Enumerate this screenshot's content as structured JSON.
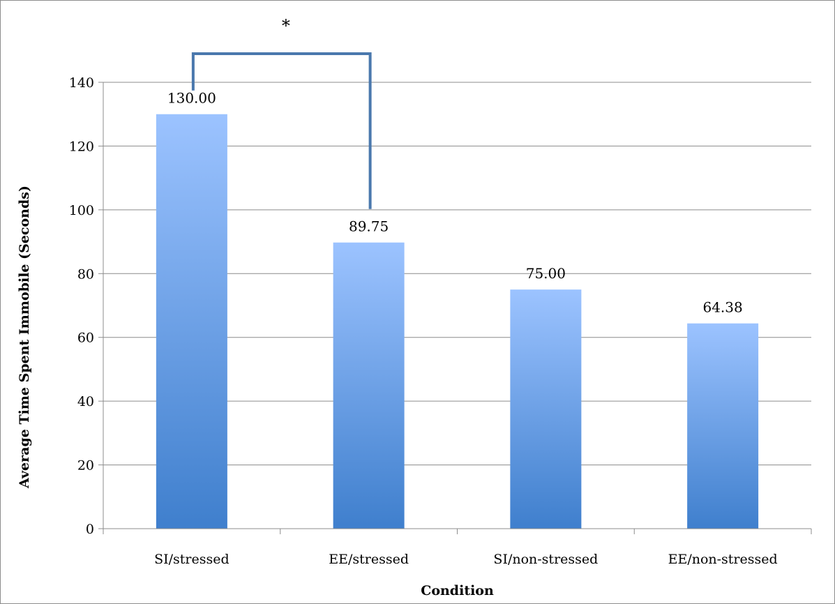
{
  "chart_data": {
    "type": "bar",
    "categories": [
      "SI/stressed",
      "EE/stressed",
      "SI/non-stressed",
      "EE/non-stressed"
    ],
    "values": [
      130.0,
      89.75,
      75.0,
      64.38
    ],
    "value_labels": [
      "130.00",
      "89.75",
      "75.00",
      "64.38"
    ],
    "title": "",
    "xlabel": "Condition",
    "ylabel": "Average Time Spent Immobile (Seconds)",
    "ylim": [
      0,
      140
    ],
    "yticks": [
      0,
      20,
      40,
      60,
      80,
      100,
      120,
      140
    ],
    "grid": "horizontal",
    "legend": "none",
    "significance": {
      "between": [
        "SI/stressed",
        "EE/stressed"
      ],
      "marker": "*"
    },
    "colors": {
      "bar_top": "#9cc3ff",
      "bar_bottom": "#3f7fcd",
      "bracket": "#4a78ad",
      "grid": "#8c8c8c",
      "axis": "#8c8c8c"
    }
  }
}
